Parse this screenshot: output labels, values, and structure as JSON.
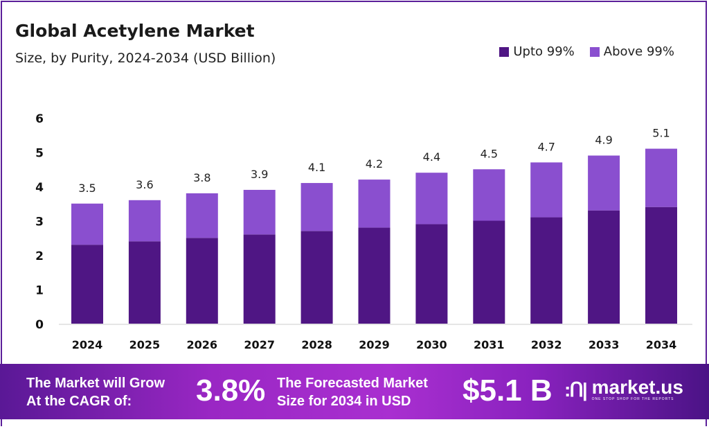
{
  "chart_data": {
    "type": "bar",
    "stacked": true,
    "title": "Global Acetylene Market",
    "subtitle": "Size, by Purity, 2024-2034 (USD Billion)",
    "categories": [
      "2024",
      "2025",
      "2026",
      "2027",
      "2028",
      "2029",
      "2030",
      "2031",
      "2032",
      "2033",
      "2034"
    ],
    "series": [
      {
        "name": "Upto 99%",
        "color": "#4f1684",
        "values": [
          2.3,
          2.4,
          2.5,
          2.6,
          2.7,
          2.8,
          2.9,
          3.0,
          3.1,
          3.3,
          3.4
        ]
      },
      {
        "name": "Above 99%",
        "color": "#8a4fcf",
        "values": [
          1.2,
          1.2,
          1.3,
          1.3,
          1.4,
          1.4,
          1.5,
          1.5,
          1.6,
          1.6,
          1.7
        ]
      }
    ],
    "totals": [
      "3.5",
      "3.6",
      "3.8",
      "3.9",
      "4.1",
      "4.2",
      "4.4",
      "4.5",
      "4.7",
      "4.9",
      "5.1"
    ],
    "ylim": [
      0,
      6
    ],
    "yticks": [
      "0",
      "1",
      "2",
      "3",
      "4",
      "5",
      "6"
    ],
    "xlabel": "",
    "ylabel": "",
    "grid": false,
    "legend_position": "top-right"
  },
  "footer": {
    "cagr_text_1": "The Market will Grow",
    "cagr_text_2": "At the CAGR of:",
    "cagr_value": "3.8%",
    "forecast_text_1": "The Forecasted Market",
    "forecast_text_2": "Size for 2034 in USD",
    "forecast_value": "$5.1 B",
    "brand": "market.us",
    "brand_tagline": "ONE STOP SHOP FOR THE REPORTS"
  }
}
